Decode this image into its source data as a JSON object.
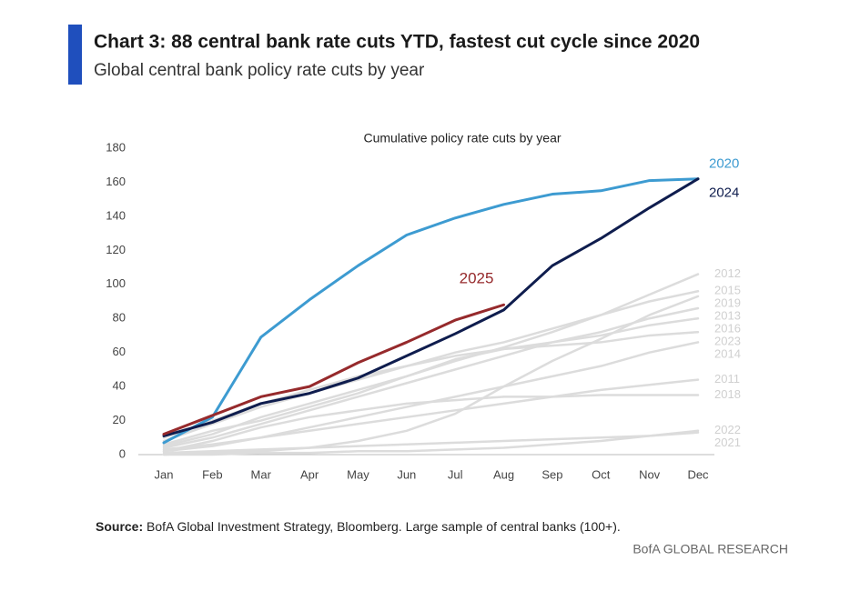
{
  "header": {
    "title": "Chart 3: 88 central bank rate cuts YTD, fastest cut cycle since 2020",
    "subtitle": "Global central bank policy rate cuts by year"
  },
  "chart_data": {
    "type": "line",
    "title": "Cumulative policy rate cuts by year",
    "categories": [
      "Jan",
      "Feb",
      "Mar",
      "Apr",
      "May",
      "Jun",
      "Jul",
      "Aug",
      "Sep",
      "Oct",
      "Nov",
      "Dec"
    ],
    "ylim": [
      0,
      180
    ],
    "yticks": [
      0,
      20,
      40,
      60,
      80,
      100,
      120,
      140,
      160,
      180
    ],
    "grid": false,
    "series": [
      {
        "name": "2012",
        "color": "#dcdcdc",
        "values": [
          5,
          12,
          22,
          30,
          38,
          46,
          55,
          63,
          72,
          82,
          94,
          106
        ]
      },
      {
        "name": "2015",
        "color": "#dcdcdc",
        "values": [
          8,
          18,
          28,
          36,
          44,
          52,
          60,
          66,
          74,
          82,
          90,
          96
        ]
      },
      {
        "name": "2019",
        "color": "#dcdcdc",
        "values": [
          0,
          1,
          2,
          4,
          8,
          14,
          24,
          40,
          55,
          68,
          82,
          93
        ]
      },
      {
        "name": "2013",
        "color": "#dcdcdc",
        "values": [
          4,
          10,
          18,
          26,
          34,
          42,
          50,
          58,
          66,
          72,
          80,
          86
        ]
      },
      {
        "name": "2016",
        "color": "#dcdcdc",
        "values": [
          6,
          14,
          20,
          28,
          36,
          46,
          56,
          62,
          66,
          70,
          76,
          80
        ]
      },
      {
        "name": "2023",
        "color": "#dcdcdc",
        "values": [
          10,
          20,
          30,
          38,
          46,
          52,
          58,
          62,
          64,
          66,
          70,
          72
        ]
      },
      {
        "name": "2014",
        "color": "#dcdcdc",
        "values": [
          2,
          5,
          10,
          16,
          22,
          28,
          34,
          40,
          46,
          52,
          60,
          66
        ]
      },
      {
        "name": "2011",
        "color": "#dcdcdc",
        "values": [
          3,
          6,
          10,
          14,
          18,
          22,
          26,
          30,
          34,
          38,
          41,
          44
        ]
      },
      {
        "name": "2018",
        "color": "#dcdcdc",
        "values": [
          2,
          8,
          16,
          22,
          26,
          30,
          32,
          34,
          34,
          35,
          35,
          35
        ]
      },
      {
        "name": "2022",
        "color": "#dcdcdc",
        "values": [
          0,
          0,
          1,
          1,
          2,
          2,
          3,
          4,
          6,
          8,
          11,
          14
        ]
      },
      {
        "name": "2021",
        "color": "#dcdcdc",
        "values": [
          1,
          2,
          3,
          4,
          5,
          6,
          7,
          8,
          9,
          10,
          11,
          13
        ]
      },
      {
        "name": "2020",
        "color": "#3d9bd1",
        "values": [
          7,
          22,
          69,
          91,
          111,
          129,
          139,
          147,
          153,
          155,
          161,
          162
        ]
      },
      {
        "name": "2024",
        "color": "#0f1d4e",
        "values": [
          11,
          19,
          30,
          36,
          45,
          58,
          71,
          85,
          111,
          127,
          145,
          162
        ]
      },
      {
        "name": "2025",
        "color": "#962a2c",
        "values": [
          12,
          23,
          34,
          40,
          54,
          66,
          79,
          88,
          null,
          null,
          null,
          null
        ]
      }
    ]
  },
  "footer": {
    "source_label": "Source:",
    "source_text": " BofA Global Investment Strategy, Bloomberg. Large sample of central banks (100+).",
    "brand": "BofA GLOBAL RESEARCH"
  }
}
